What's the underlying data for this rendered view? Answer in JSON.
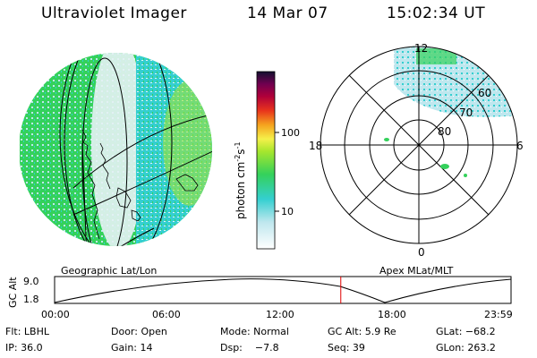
{
  "header": {
    "title": "Ultraviolet Imager",
    "date": "14 Mar 07",
    "time": "15:02:34 UT"
  },
  "colorbar": {
    "label": "photon cm",
    "label_sup_neg2": "-2",
    "label_s": "s",
    "label_sup_neg1": "-1",
    "ticks": [
      "100",
      "10"
    ]
  },
  "polar_plot": {
    "mlt_labels": {
      "top": "12",
      "left": "18",
      "right": "6",
      "bottom": "0"
    },
    "lat_labels": [
      "60",
      "70",
      "80"
    ]
  },
  "alt_plot": {
    "left_label": "Geographic Lat/Lon",
    "right_label": "Apex MLat/MLT",
    "ylabel": "GC Alt",
    "y_ticks": [
      "9.0",
      "1.8"
    ],
    "x_ticks": [
      "00:00",
      "06:00",
      "12:00",
      "18:00",
      "23:59"
    ],
    "current_fraction": 0.627
  },
  "info": {
    "row1": {
      "filter": "Flt: LBHL",
      "door": "Door: Open",
      "mode": "Mode: Normal",
      "gc_alt": "GC Alt: 5.9 Re",
      "glat": "GLat: −68.2"
    },
    "row2": {
      "ip": "IP: 36.0",
      "gain": "Gain: 14",
      "dsp": "Dsp:    −7.8",
      "seq": "Seq: 39",
      "glon": "GLon: 263.2"
    }
  },
  "colors": {
    "cyan": "#34cfd0",
    "light_cyan": "#bfe7ee",
    "green": "#34d15b",
    "yellow_green": "#a7e62d",
    "marker_red": "#e00000"
  }
}
